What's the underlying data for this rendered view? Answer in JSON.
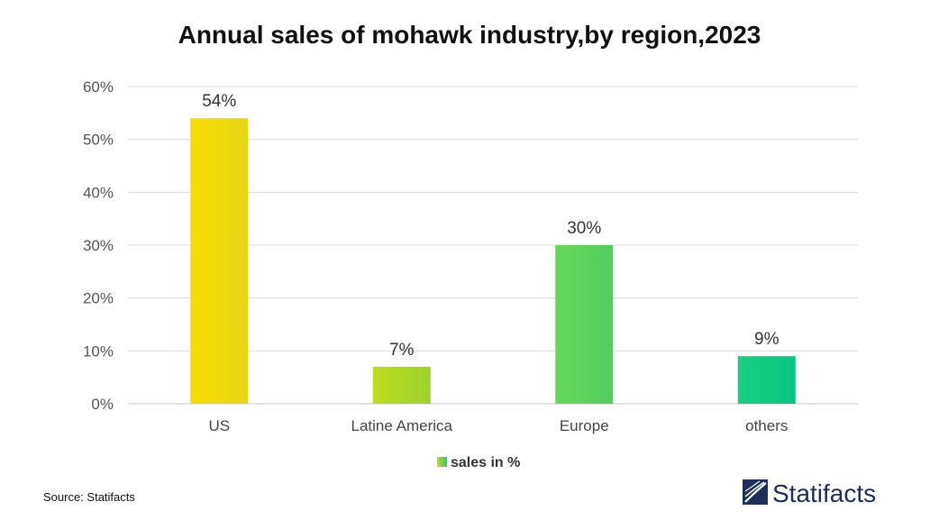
{
  "chart_data": {
    "type": "bar",
    "title": "Annual sales of mohawk industry,by region,2023",
    "categories": [
      "US",
      "Latine America",
      "Europe",
      "others"
    ],
    "series": [
      {
        "name": "sales in %",
        "values": [
          54,
          7,
          30,
          9
        ]
      }
    ],
    "data_labels": [
      "54%",
      "7%",
      "30%",
      "9%"
    ],
    "yticks": [
      0,
      10,
      20,
      30,
      40,
      50,
      60
    ],
    "ytick_labels": [
      "0%",
      "10%",
      "20%",
      "30%",
      "40%",
      "50%",
      "60%"
    ],
    "ylim": [
      0,
      60
    ],
    "xlabel": "",
    "ylabel": "",
    "grid": true,
    "legend_position": "bottom-center"
  },
  "colors": {
    "bar_gradients": [
      [
        "#f8dc00",
        "#e4d616"
      ],
      [
        "#bedc1e",
        "#9ed22e"
      ],
      [
        "#66d858",
        "#52cc62"
      ],
      [
        "#18d080",
        "#08c484"
      ]
    ],
    "grid": "#d9d9d9",
    "legend_swatch": [
      "#c8d820",
      "#30c870"
    ],
    "brand": "#1c2e5a"
  },
  "footer": {
    "source": "Source: Statifacts",
    "brand_name": "Statifacts",
    "brand_icon": "statifacts-logo-icon"
  }
}
